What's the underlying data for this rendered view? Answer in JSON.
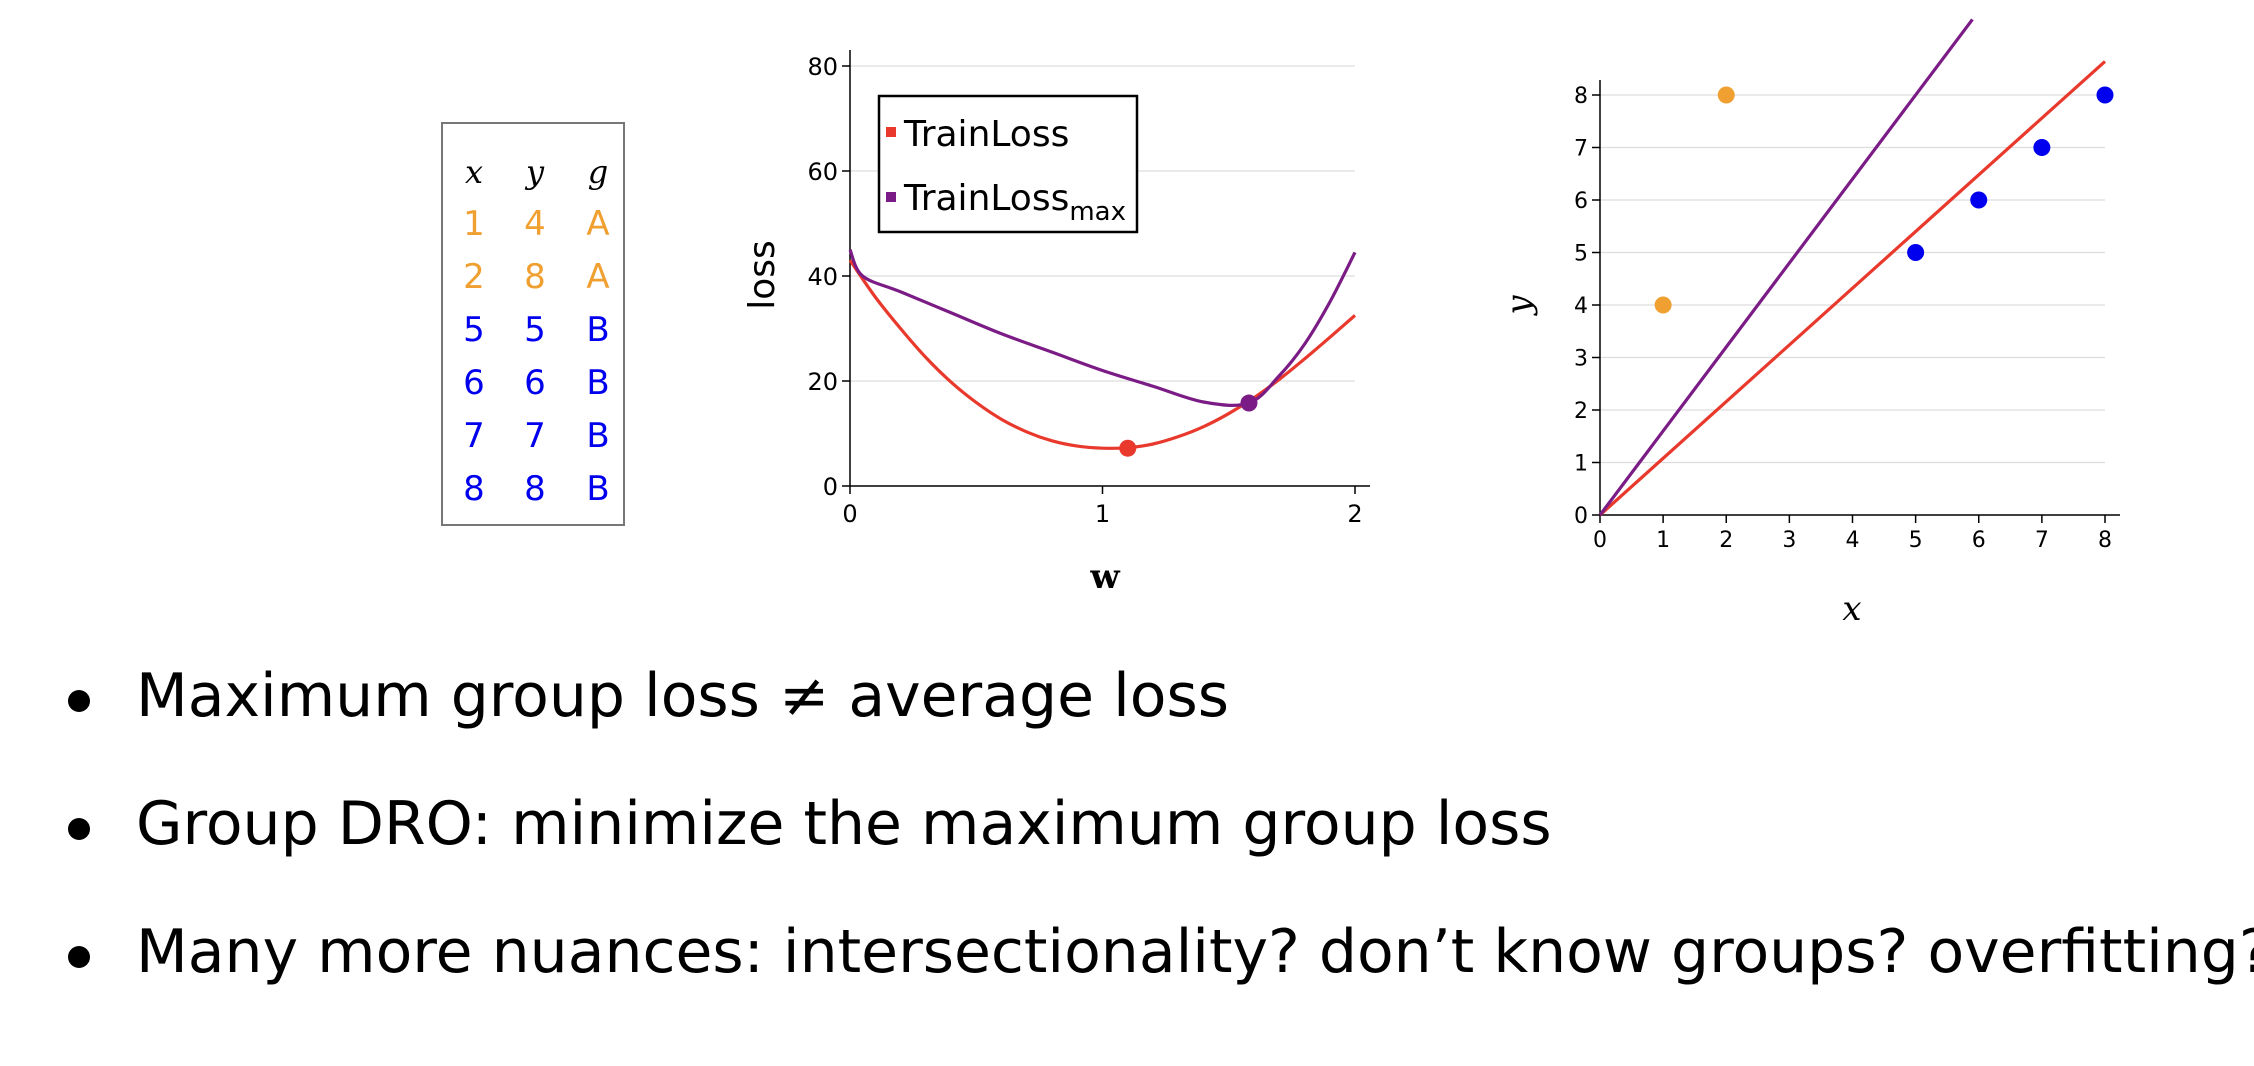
{
  "table": {
    "headers": [
      "x",
      "y",
      "g"
    ],
    "rows": [
      {
        "x": "1",
        "y": "4",
        "g": "A"
      },
      {
        "x": "2",
        "y": "8",
        "g": "A"
      },
      {
        "x": "5",
        "y": "5",
        "g": "B"
      },
      {
        "x": "6",
        "y": "6",
        "g": "B"
      },
      {
        "x": "7",
        "y": "7",
        "g": "B"
      },
      {
        "x": "8",
        "y": "8",
        "g": "B"
      }
    ],
    "group_colors": {
      "A": "#F0A030",
      "B": "#0000EE"
    }
  },
  "chart_data": [
    {
      "type": "line",
      "ylabel": "loss",
      "xlabel": "w",
      "xlim": [
        0,
        2
      ],
      "ylim": [
        0,
        80
      ],
      "x_ticks": [
        "0",
        "1",
        "2"
      ],
      "y_ticks": [
        "0",
        "20",
        "40",
        "60",
        "80"
      ],
      "grid": "horizontal",
      "legend_position": "top-left",
      "legend": [
        {
          "label": "TrainLoss",
          "sub": "",
          "color": "#E8392C"
        },
        {
          "label": "TrainLoss",
          "sub": "max",
          "color": "#7B1C86"
        }
      ],
      "series": [
        {
          "name": "TrainLoss",
          "color": "#E8392C",
          "x": [
            0,
            0.1,
            0.2,
            0.3,
            0.4,
            0.5,
            0.6,
            0.7,
            0.8,
            0.9,
            1.0,
            1.1,
            1.2,
            1.3,
            1.4,
            1.5,
            1.6,
            1.7,
            1.8,
            1.9,
            2.0
          ],
          "y": [
            43,
            36,
            30,
            24.5,
            19.8,
            15.9,
            12.7,
            10.3,
            8.6,
            7.6,
            7.2,
            7.3,
            8.0,
            9.4,
            11.3,
            13.8,
            16.8,
            20.3,
            24.2,
            28.3,
            32.5
          ]
        },
        {
          "name": "TrainLoss_max",
          "color": "#7B1C86",
          "x": [
            0,
            0.05,
            0.2,
            0.4,
            0.6,
            0.8,
            1.0,
            1.2,
            1.4,
            1.58,
            1.7,
            1.8,
            1.9,
            2.0
          ],
          "y": [
            45,
            40,
            37,
            33,
            29,
            25.5,
            22,
            19,
            16,
            15.8,
            21,
            27,
            35,
            44.5
          ]
        }
      ],
      "markers": [
        {
          "x": 1.1,
          "y": 7.2,
          "color": "#E8392C"
        },
        {
          "x": 1.58,
          "y": 15.8,
          "color": "#7B1C86"
        }
      ]
    },
    {
      "type": "scatter",
      "xlabel": "x",
      "ylabel": "y",
      "xlim": [
        0,
        8
      ],
      "ylim": [
        0,
        8
      ],
      "x_ticks": [
        "0",
        "1",
        "2",
        "3",
        "4",
        "5",
        "6",
        "7",
        "8"
      ],
      "y_ticks": [
        "0",
        "1",
        "2",
        "3",
        "4",
        "5",
        "6",
        "7",
        "8"
      ],
      "grid": "horizontal",
      "points": [
        {
          "x": 1,
          "y": 4,
          "group": "A",
          "color": "#F0A030"
        },
        {
          "x": 2,
          "y": 8,
          "group": "A",
          "color": "#F0A030"
        },
        {
          "x": 5,
          "y": 5,
          "group": "B",
          "color": "#0000EE"
        },
        {
          "x": 6,
          "y": 6,
          "group": "B",
          "color": "#0000EE"
        },
        {
          "x": 7,
          "y": 7,
          "group": "B",
          "color": "#0000EE"
        },
        {
          "x": 8,
          "y": 8,
          "group": "B",
          "color": "#0000EE"
        }
      ],
      "lines": [
        {
          "slope": 1.08,
          "x_end": 8,
          "color": "#E8392C"
        },
        {
          "slope": 1.6,
          "x_end": 5.9,
          "color": "#7B1C86"
        }
      ]
    }
  ],
  "bullets": [
    {
      "before": "Maximum group loss ",
      "symbol": "≠",
      "after": " average loss"
    },
    {
      "before": "Group DRO: minimize the maximum group loss",
      "symbol": "",
      "after": ""
    },
    {
      "before": "Many more nuances: intersectionality? don’t know groups? overfitting?",
      "symbol": "",
      "after": ""
    }
  ]
}
